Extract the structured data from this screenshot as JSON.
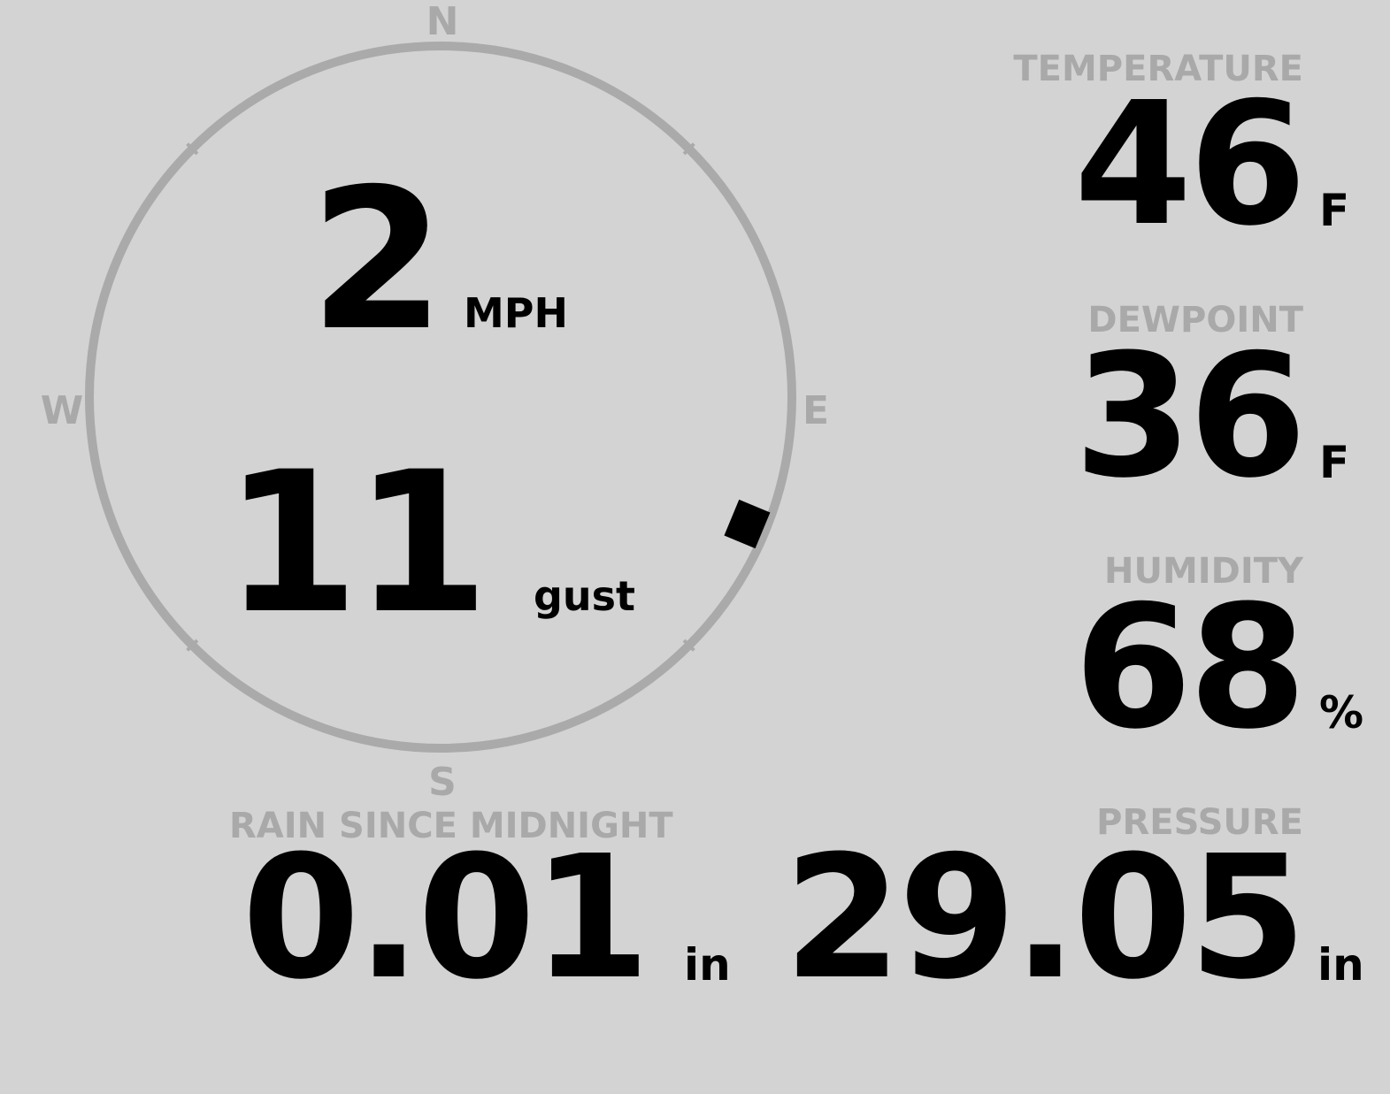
{
  "wind": {
    "compass": {
      "north": "N",
      "east": "E",
      "south": "S",
      "west": "W"
    },
    "direction_deg": 112.5,
    "speed": "2",
    "speed_unit": "MPH",
    "gust": "11",
    "gust_label": "gust"
  },
  "temperature": {
    "label": "TEMPERATURE",
    "value": "46",
    "unit": "F"
  },
  "dewpoint": {
    "label": "DEWPOINT",
    "value": "36",
    "unit": "F"
  },
  "humidity": {
    "label": "HUMIDITY",
    "value": "68",
    "unit": "%"
  },
  "rain": {
    "label": "RAIN SINCE MIDNIGHT",
    "value": "0.01",
    "unit": "in"
  },
  "pressure": {
    "label": "PRESSURE",
    "value": "29.05",
    "unit": "in"
  },
  "colors": {
    "background": "#d3d3d3",
    "label": "#a9a9a9",
    "ring": "#aaaaaa",
    "value": "#000000"
  }
}
